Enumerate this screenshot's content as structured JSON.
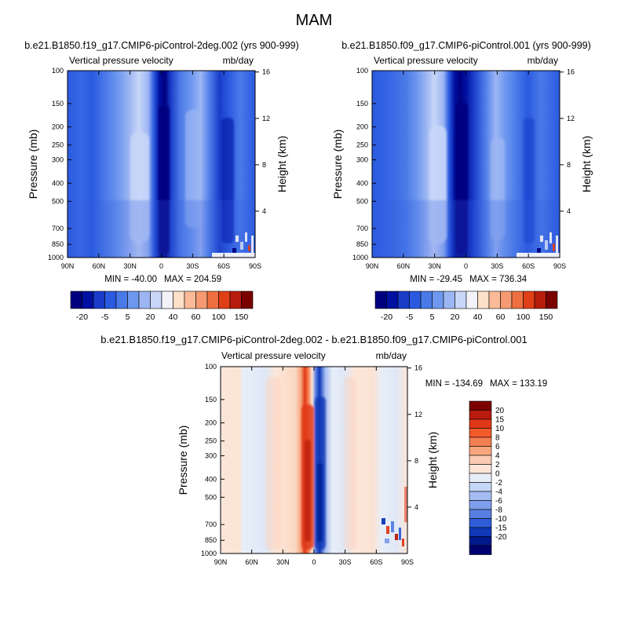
{
  "figure": {
    "title": "MAM",
    "variable_label": "Vertical pressure velocity",
    "units_label": "mb/day"
  },
  "colors": {
    "abs_levels": [
      "#00007f",
      "#0010a0",
      "#1a3cc8",
      "#2a5ae0",
      "#4a7ae8",
      "#6e98ef",
      "#9db6f3",
      "#c8d6f8",
      "#f2f2f8",
      "#fde0c8",
      "#fbbb98",
      "#f59a72",
      "#ee7040",
      "#e04018",
      "#b81c0c",
      "#7a0000"
    ],
    "diff_levels": [
      "#7a0000",
      "#b81c0c",
      "#e03818",
      "#f25a2a",
      "#f57f52",
      "#f8a57e",
      "#fbcab2",
      "#fde6d8",
      "#e8eef8",
      "#c6d6f6",
      "#a4bcf2",
      "#7f9eec",
      "#577ee2",
      "#2f5ed8",
      "#1038b8",
      "#001a8c",
      "#00006e"
    ]
  },
  "chart_data": [
    {
      "type": "heatmap",
      "panel": "top-left",
      "title": "b.e21.B1850.f19_g17.CMIP6-piControl-2deg.002 (yrs 900-999)",
      "ylabel": "Pressure (mb)",
      "y2label": "Height (km)",
      "x_ticks": [
        "90N",
        "60N",
        "30N",
        "0",
        "30S",
        "60S",
        "90S"
      ],
      "y_ticks": [
        "100",
        "150",
        "200",
        "250",
        "300",
        "400",
        "500",
        "700",
        "850",
        "1000"
      ],
      "y2_ticks": [
        "16",
        "12",
        "8",
        "4"
      ],
      "ylim": [
        1000,
        100
      ],
      "min_label": "MIN = -40.00",
      "max_label": "MAX = 204.59",
      "colorbar_labels": [
        "-20",
        "-5",
        "5",
        "20",
        "40",
        "60",
        "100",
        "150"
      ]
    },
    {
      "type": "heatmap",
      "panel": "top-right",
      "title": "b.e21.B1850.f09_g17.CMIP6-piControl.001 (yrs 900-999)",
      "ylabel": "Pressure (mb)",
      "y2label": "Height (km)",
      "x_ticks": [
        "90N",
        "60N",
        "30N",
        "0",
        "30S",
        "60S",
        "90S"
      ],
      "y_ticks": [
        "100",
        "150",
        "200",
        "250",
        "300",
        "400",
        "500",
        "700",
        "850",
        "1000"
      ],
      "y2_ticks": [
        "16",
        "12",
        "8",
        "4"
      ],
      "ylim": [
        1000,
        100
      ],
      "min_label": "MIN = -29.45",
      "max_label": "MAX = 736.34",
      "colorbar_labels": [
        "-20",
        "-5",
        "5",
        "20",
        "40",
        "60",
        "100",
        "150"
      ]
    },
    {
      "type": "heatmap",
      "panel": "bottom",
      "title": "b.e21.B1850.f19_g17.CMIP6-piControl-2deg.002 - b.e21.B1850.f09_g17.CMIP6-piControl.001",
      "ylabel": "Pressure (mb)",
      "y2label": "Height (km)",
      "x_ticks": [
        "90N",
        "60N",
        "30N",
        "0",
        "30S",
        "60S",
        "90S"
      ],
      "y_ticks": [
        "100",
        "150",
        "200",
        "250",
        "300",
        "400",
        "500",
        "700",
        "850",
        "1000"
      ],
      "y2_ticks": [
        "16",
        "12",
        "8",
        "4"
      ],
      "ylim": [
        1000,
        100
      ],
      "min_label": "MIN = -134.69",
      "max_label": "MAX = 133.19",
      "colorbar_labels": [
        "20",
        "15",
        "10",
        "8",
        "6",
        "4",
        "2",
        "0",
        "-2",
        "-4",
        "-6",
        "-8",
        "-10",
        "-15",
        "-20"
      ]
    }
  ]
}
